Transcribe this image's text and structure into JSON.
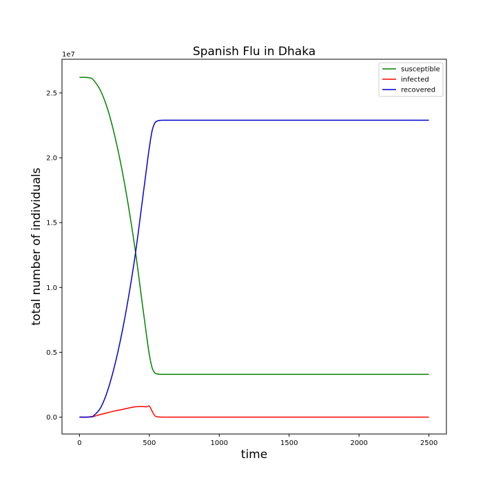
{
  "chart_data": {
    "type": "line",
    "title": "Spanish Flu in Dhaka",
    "xlabel": "time",
    "ylabel": "total number of individuals",
    "y_offset_label": "1e7",
    "xlim": [
      -125,
      2625
    ],
    "ylim": [
      -1300000,
      27600000
    ],
    "x_ticks": [
      0,
      500,
      1000,
      1500,
      2000,
      2500
    ],
    "x_tick_labels": [
      "0",
      "500",
      "1000",
      "1500",
      "2000",
      "2500"
    ],
    "y_ticks": [
      0,
      5000000,
      10000000,
      15000000,
      20000000,
      25000000
    ],
    "y_tick_labels": [
      "0.0",
      "0.5",
      "1.0",
      "1.5",
      "2.0",
      "2.5"
    ],
    "grid": false,
    "legend_position": "top-right",
    "x": [
      0,
      50,
      80,
      100,
      150,
      200,
      250,
      300,
      350,
      400,
      450,
      480,
      500,
      520,
      540,
      560,
      580,
      600,
      700,
      1000,
      1500,
      2000,
      2500
    ],
    "series": [
      {
        "name": "susceptible",
        "color": "#008000",
        "values": [
          26200000,
          26200000,
          26150000,
          26000000,
          25200000,
          23800000,
          21800000,
          19300000,
          16300000,
          12800000,
          8700000,
          6300000,
          4800000,
          3800000,
          3400000,
          3320000,
          3300000,
          3300000,
          3300000,
          3300000,
          3300000,
          3300000,
          3300000
        ]
      },
      {
        "name": "infected",
        "color": "#ff0000",
        "values": [
          0,
          0,
          20000,
          50000,
          200000,
          340000,
          470000,
          580000,
          700000,
          800000,
          820000,
          800000,
          850000,
          450000,
          100000,
          20000,
          5000,
          2000,
          0,
          0,
          0,
          0,
          0
        ]
      },
      {
        "name": "recovered",
        "color": "#0000cc",
        "values": [
          0,
          0,
          30000,
          100000,
          700000,
          2000000,
          3900000,
          6300000,
          9200000,
          12600000,
          16700000,
          19200000,
          20800000,
          22100000,
          22700000,
          22850000,
          22890000,
          22900000,
          22900000,
          22900000,
          22900000,
          22900000,
          22900000
        ]
      }
    ]
  }
}
